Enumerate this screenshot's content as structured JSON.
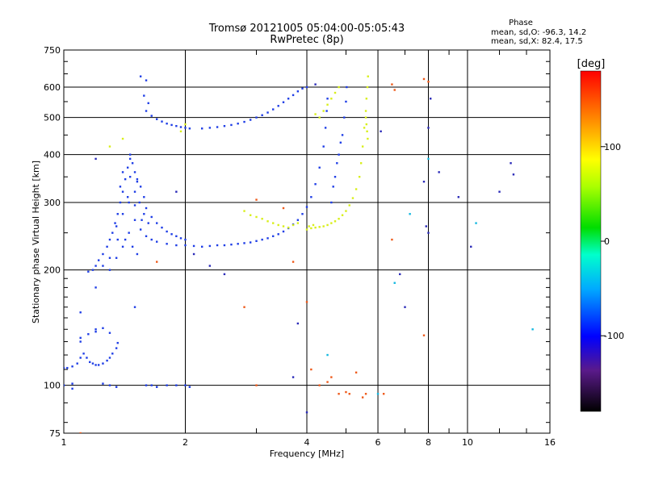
{
  "chart_data": {
    "type": "scatter",
    "title": "Tromsø 20121005 05:04:00-05:05:43",
    "subtitle": "RwPretec (8p)",
    "xlabel": "Frequency [MHz]",
    "ylabel": "Stationary phase Virtual Height [km]",
    "x_scale": "log",
    "y_scale": "log",
    "xlim": [
      1,
      16
    ],
    "ylim": [
      75,
      750
    ],
    "x_ticks": [
      "1",
      "2",
      "4",
      "6",
      "8",
      "10",
      "16"
    ],
    "y_ticks": [
      "75",
      "100",
      "200",
      "300",
      "400",
      "500",
      "600",
      "750"
    ],
    "grid": true,
    "phase_legend": {
      "heading": "Phase",
      "o_line": "mean, sd,O: -96.3, 14.2",
      "x_line": "mean, sd,X:  82.4, 17.5"
    },
    "colorbar": {
      "label": "[deg]",
      "ticks": [
        "100",
        "0",
        "-100"
      ],
      "range": [
        -180,
        180
      ]
    },
    "series": [
      {
        "points": [
          [
            1.0,
            111
          ],
          [
            1.02,
            111
          ],
          [
            1.05,
            112
          ],
          [
            1.08,
            114
          ],
          [
            1.1,
            118
          ],
          [
            1.12,
            121
          ],
          [
            1.14,
            118
          ],
          [
            1.16,
            115
          ],
          [
            1.18,
            114
          ],
          [
            1.2,
            113
          ],
          [
            1.22,
            113
          ],
          [
            1.25,
            114
          ],
          [
            1.28,
            116
          ],
          [
            1.3,
            118
          ],
          [
            1.32,
            121
          ],
          [
            1.35,
            125
          ],
          [
            1.36,
            129
          ],
          [
            1.1,
            133
          ],
          [
            1.15,
            136
          ],
          [
            1.2,
            138
          ],
          [
            1.25,
            141
          ],
          [
            1.3,
            137
          ],
          [
            1.15,
            198
          ],
          [
            1.18,
            200
          ],
          [
            1.2,
            205
          ],
          [
            1.22,
            212
          ],
          [
            1.25,
            220
          ],
          [
            1.28,
            230
          ],
          [
            1.3,
            240
          ],
          [
            1.32,
            250
          ],
          [
            1.34,
            265
          ],
          [
            1.36,
            280
          ],
          [
            1.38,
            300
          ],
          [
            1.4,
            320
          ],
          [
            1.42,
            345
          ],
          [
            1.44,
            370
          ],
          [
            1.46,
            390
          ],
          [
            1.48,
            380
          ],
          [
            1.5,
            360
          ],
          [
            1.52,
            345
          ],
          [
            1.55,
            330
          ],
          [
            1.58,
            310
          ],
          [
            1.6,
            290
          ],
          [
            1.65,
            275
          ],
          [
            1.7,
            265
          ],
          [
            1.75,
            258
          ],
          [
            1.8,
            252
          ],
          [
            1.85,
            248
          ],
          [
            1.9,
            245
          ],
          [
            1.95,
            242
          ],
          [
            2.0,
            240
          ],
          [
            1.3,
            200
          ],
          [
            1.35,
            215
          ],
          [
            1.4,
            230
          ],
          [
            1.45,
            250
          ],
          [
            1.5,
            270
          ],
          [
            1.55,
            255
          ],
          [
            1.6,
            245
          ],
          [
            1.65,
            240
          ],
          [
            1.7,
            237
          ],
          [
            1.8,
            234
          ],
          [
            1.9,
            232
          ],
          [
            2.0,
            232
          ],
          [
            2.1,
            231
          ],
          [
            2.2,
            230
          ],
          [
            2.3,
            231
          ],
          [
            2.4,
            232
          ],
          [
            2.5,
            232
          ],
          [
            2.6,
            233
          ],
          [
            2.7,
            234
          ],
          [
            2.8,
            235
          ],
          [
            2.9,
            236
          ],
          [
            3.0,
            238
          ],
          [
            3.1,
            240
          ],
          [
            3.2,
            242
          ],
          [
            3.3,
            245
          ],
          [
            3.4,
            248
          ],
          [
            3.5,
            252
          ],
          [
            3.6,
            257
          ],
          [
            3.7,
            263
          ],
          [
            3.8,
            270
          ],
          [
            3.9,
            280
          ],
          [
            4.0,
            292
          ],
          [
            4.1,
            310
          ],
          [
            4.2,
            335
          ],
          [
            4.3,
            370
          ],
          [
            4.4,
            420
          ],
          [
            4.45,
            470
          ],
          [
            4.48,
            520
          ],
          [
            4.5,
            560
          ],
          [
            1.35,
            260
          ],
          [
            1.4,
            280
          ],
          [
            1.45,
            300
          ],
          [
            1.5,
            320
          ],
          [
            1.42,
            240
          ],
          [
            1.48,
            230
          ],
          [
            1.52,
            220
          ],
          [
            1.38,
            330
          ],
          [
            1.46,
            350
          ],
          [
            1.54,
            300
          ],
          [
            1.58,
            280
          ],
          [
            1.62,
            265
          ],
          [
            1.44,
            310
          ],
          [
            1.5,
            295
          ],
          [
            1.56,
            270
          ],
          [
            1.4,
            360
          ],
          [
            1.46,
            400
          ],
          [
            1.52,
            340
          ],
          [
            1.36,
            240
          ],
          [
            1.3,
            215
          ],
          [
            1.25,
            205
          ],
          [
            1.6,
            520
          ],
          [
            1.65,
            505
          ],
          [
            1.7,
            495
          ],
          [
            1.75,
            488
          ],
          [
            1.8,
            482
          ],
          [
            1.85,
            478
          ],
          [
            1.9,
            475
          ],
          [
            1.95,
            472
          ],
          [
            2.0,
            470
          ],
          [
            2.05,
            468
          ],
          [
            2.2,
            468
          ],
          [
            2.3,
            470
          ],
          [
            2.4,
            472
          ],
          [
            2.5,
            475
          ],
          [
            2.6,
            478
          ],
          [
            2.7,
            482
          ],
          [
            2.8,
            487
          ],
          [
            2.9,
            493
          ],
          [
            3.0,
            500
          ],
          [
            3.1,
            507
          ],
          [
            3.2,
            515
          ],
          [
            3.3,
            525
          ],
          [
            3.4,
            536
          ],
          [
            3.5,
            548
          ],
          [
            3.6,
            560
          ],
          [
            3.7,
            572
          ],
          [
            3.8,
            585
          ],
          [
            3.9,
            595
          ],
          [
            4.0,
            600
          ],
          [
            1.58,
            570
          ],
          [
            1.62,
            545
          ],
          [
            1.55,
            640
          ],
          [
            1.6,
            625
          ],
          [
            4.6,
            300
          ],
          [
            4.7,
            350
          ],
          [
            4.8,
            400
          ],
          [
            4.9,
            450
          ],
          [
            4.95,
            500
          ],
          [
            5.0,
            550
          ],
          [
            5.02,
            600
          ],
          [
            4.85,
            430
          ],
          [
            4.75,
            380
          ],
          [
            4.65,
            330
          ],
          [
            1.0,
            100
          ],
          [
            1.05,
            101
          ],
          [
            1.25,
            101
          ],
          [
            1.3,
            100
          ],
          [
            1.35,
            99
          ],
          [
            1.6,
            100
          ],
          [
            1.65,
            100
          ],
          [
            1.7,
            99
          ],
          [
            1.8,
            100
          ],
          [
            1.9,
            100
          ],
          [
            2.0,
            100
          ],
          [
            2.05,
            99
          ],
          [
            1.1,
            155
          ],
          [
            1.2,
            140
          ],
          [
            1.5,
            160
          ],
          [
            1.2,
            180
          ],
          [
            1.05,
            98
          ],
          [
            1.1,
            130
          ]
        ]
      },
      {
        "points": [
          [
            4.2,
            258
          ],
          [
            4.3,
            259
          ],
          [
            4.4,
            260
          ],
          [
            4.5,
            262
          ],
          [
            4.6,
            265
          ],
          [
            4.7,
            268
          ],
          [
            4.8,
            272
          ],
          [
            4.9,
            278
          ],
          [
            5.0,
            285
          ],
          [
            5.1,
            295
          ],
          [
            5.2,
            308
          ],
          [
            5.3,
            325
          ],
          [
            5.4,
            350
          ],
          [
            5.45,
            380
          ],
          [
            5.5,
            420
          ],
          [
            5.55,
            470
          ],
          [
            5.6,
            520
          ],
          [
            5.62,
            560
          ],
          [
            5.65,
            600
          ],
          [
            5.67,
            640
          ],
          [
            4.0,
            255
          ],
          [
            4.1,
            257
          ],
          [
            4.05,
            260
          ],
          [
            4.15,
            262
          ],
          [
            2.8,
            285
          ],
          [
            2.9,
            278
          ],
          [
            3.0,
            275
          ],
          [
            3.1,
            272
          ],
          [
            3.2,
            268
          ],
          [
            3.3,
            265
          ],
          [
            3.4,
            262
          ],
          [
            3.5,
            260
          ],
          [
            3.6,
            258
          ],
          [
            3.7,
            262
          ],
          [
            3.8,
            265
          ],
          [
            4.4,
            520
          ],
          [
            4.5,
            540
          ],
          [
            4.6,
            560
          ],
          [
            4.7,
            580
          ],
          [
            4.8,
            600
          ],
          [
            5.6,
            500
          ],
          [
            5.62,
            480
          ],
          [
            5.64,
            460
          ],
          [
            5.66,
            440
          ],
          [
            4.3,
            500
          ],
          [
            4.2,
            510
          ],
          [
            1.4,
            440
          ],
          [
            1.95,
            460
          ],
          [
            2.0,
            480
          ],
          [
            1.3,
            420
          ]
        ]
      },
      {
        "points": [
          [
            4.1,
            110
          ],
          [
            4.3,
            100
          ],
          [
            4.5,
            102
          ],
          [
            4.6,
            105
          ],
          [
            4.8,
            95
          ],
          [
            5.0,
            96
          ],
          [
            5.1,
            95
          ],
          [
            5.3,
            108
          ],
          [
            5.5,
            93
          ],
          [
            5.6,
            95
          ],
          [
            6.2,
            95
          ],
          [
            6.5,
            610
          ],
          [
            6.6,
            590
          ],
          [
            7.8,
            630
          ],
          [
            8.0,
            620
          ],
          [
            2.8,
            160
          ],
          [
            3.0,
            100
          ],
          [
            3.5,
            290
          ],
          [
            3.7,
            210
          ],
          [
            4.0,
            165
          ],
          [
            1.7,
            210
          ],
          [
            6.5,
            240
          ],
          [
            7.8,
            135
          ],
          [
            3.0,
            305
          ],
          [
            1.1,
            75
          ]
        ]
      },
      {
        "points": [
          [
            7.8,
            340
          ],
          [
            7.9,
            260
          ],
          [
            8.0,
            250
          ],
          [
            8.5,
            360
          ],
          [
            9.5,
            310
          ],
          [
            10.2,
            230
          ],
          [
            12.0,
            320
          ],
          [
            12.8,
            380
          ],
          [
            13.0,
            355
          ],
          [
            8.0,
            470
          ],
          [
            8.1,
            560
          ],
          [
            1.9,
            320
          ],
          [
            1.2,
            390
          ],
          [
            2.1,
            220
          ],
          [
            2.3,
            205
          ],
          [
            2.5,
            195
          ],
          [
            3.7,
            105
          ],
          [
            3.8,
            145
          ],
          [
            4.0,
            85
          ],
          [
            6.8,
            195
          ],
          [
            7.0,
            160
          ],
          [
            6.1,
            460
          ],
          [
            4.2,
            610
          ]
        ]
      },
      {
        "points": [
          [
            14.5,
            140
          ],
          [
            6.6,
            185
          ],
          [
            7.2,
            280
          ],
          [
            4.5,
            120
          ],
          [
            10.5,
            265
          ],
          [
            8.0,
            390
          ],
          [
            6.0,
            95
          ]
        ]
      }
    ]
  }
}
